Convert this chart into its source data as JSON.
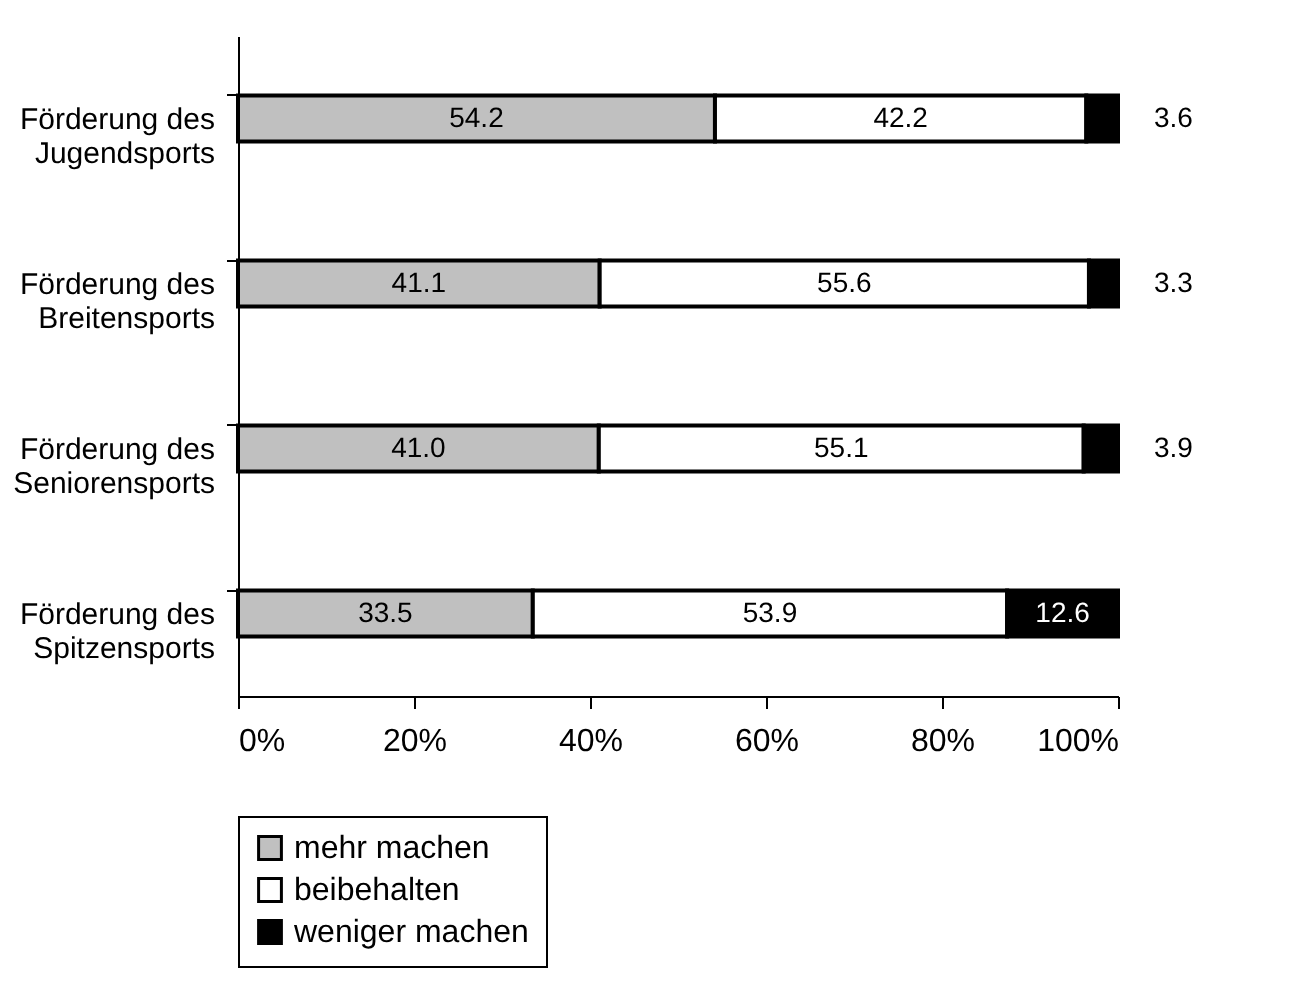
{
  "chart_data": {
    "type": "bar",
    "orientation": "horizontal",
    "stacked": true,
    "grid": false,
    "legend": "bottom",
    "categories": [
      "Förderung des Jugendsports",
      "Förderung des Breitensports",
      "Förderung des Seniorensports",
      "Förderung des Spitzensports"
    ],
    "series": [
      {
        "name": "mehr machen",
        "color": "#c0c0c0",
        "values": [
          54.2,
          41.1,
          41.0,
          33.5
        ],
        "value_labels": [
          "54.2",
          "41.1",
          "41.0",
          "33.5"
        ]
      },
      {
        "name": "beibehalten",
        "color": "#ffffff",
        "values": [
          42.2,
          55.6,
          55.1,
          53.9
        ],
        "value_labels": [
          "42.2",
          "55.6",
          "55.1",
          "53.9"
        ]
      },
      {
        "name": "weniger machen",
        "color": "#000000",
        "values": [
          3.6,
          3.3,
          3.9,
          12.6
        ],
        "value_labels": [
          "3.6",
          "3.3",
          "3.9",
          "12.6"
        ]
      }
    ],
    "xlim": [
      0,
      100
    ],
    "xticks": [
      {
        "value": 0,
        "label": "0%"
      },
      {
        "value": 20,
        "label": "20%"
      },
      {
        "value": 40,
        "label": "40%"
      },
      {
        "value": 60,
        "label": "60%"
      },
      {
        "value": 80,
        "label": "80%"
      },
      {
        "value": 100,
        "label": "100%"
      }
    ]
  }
}
